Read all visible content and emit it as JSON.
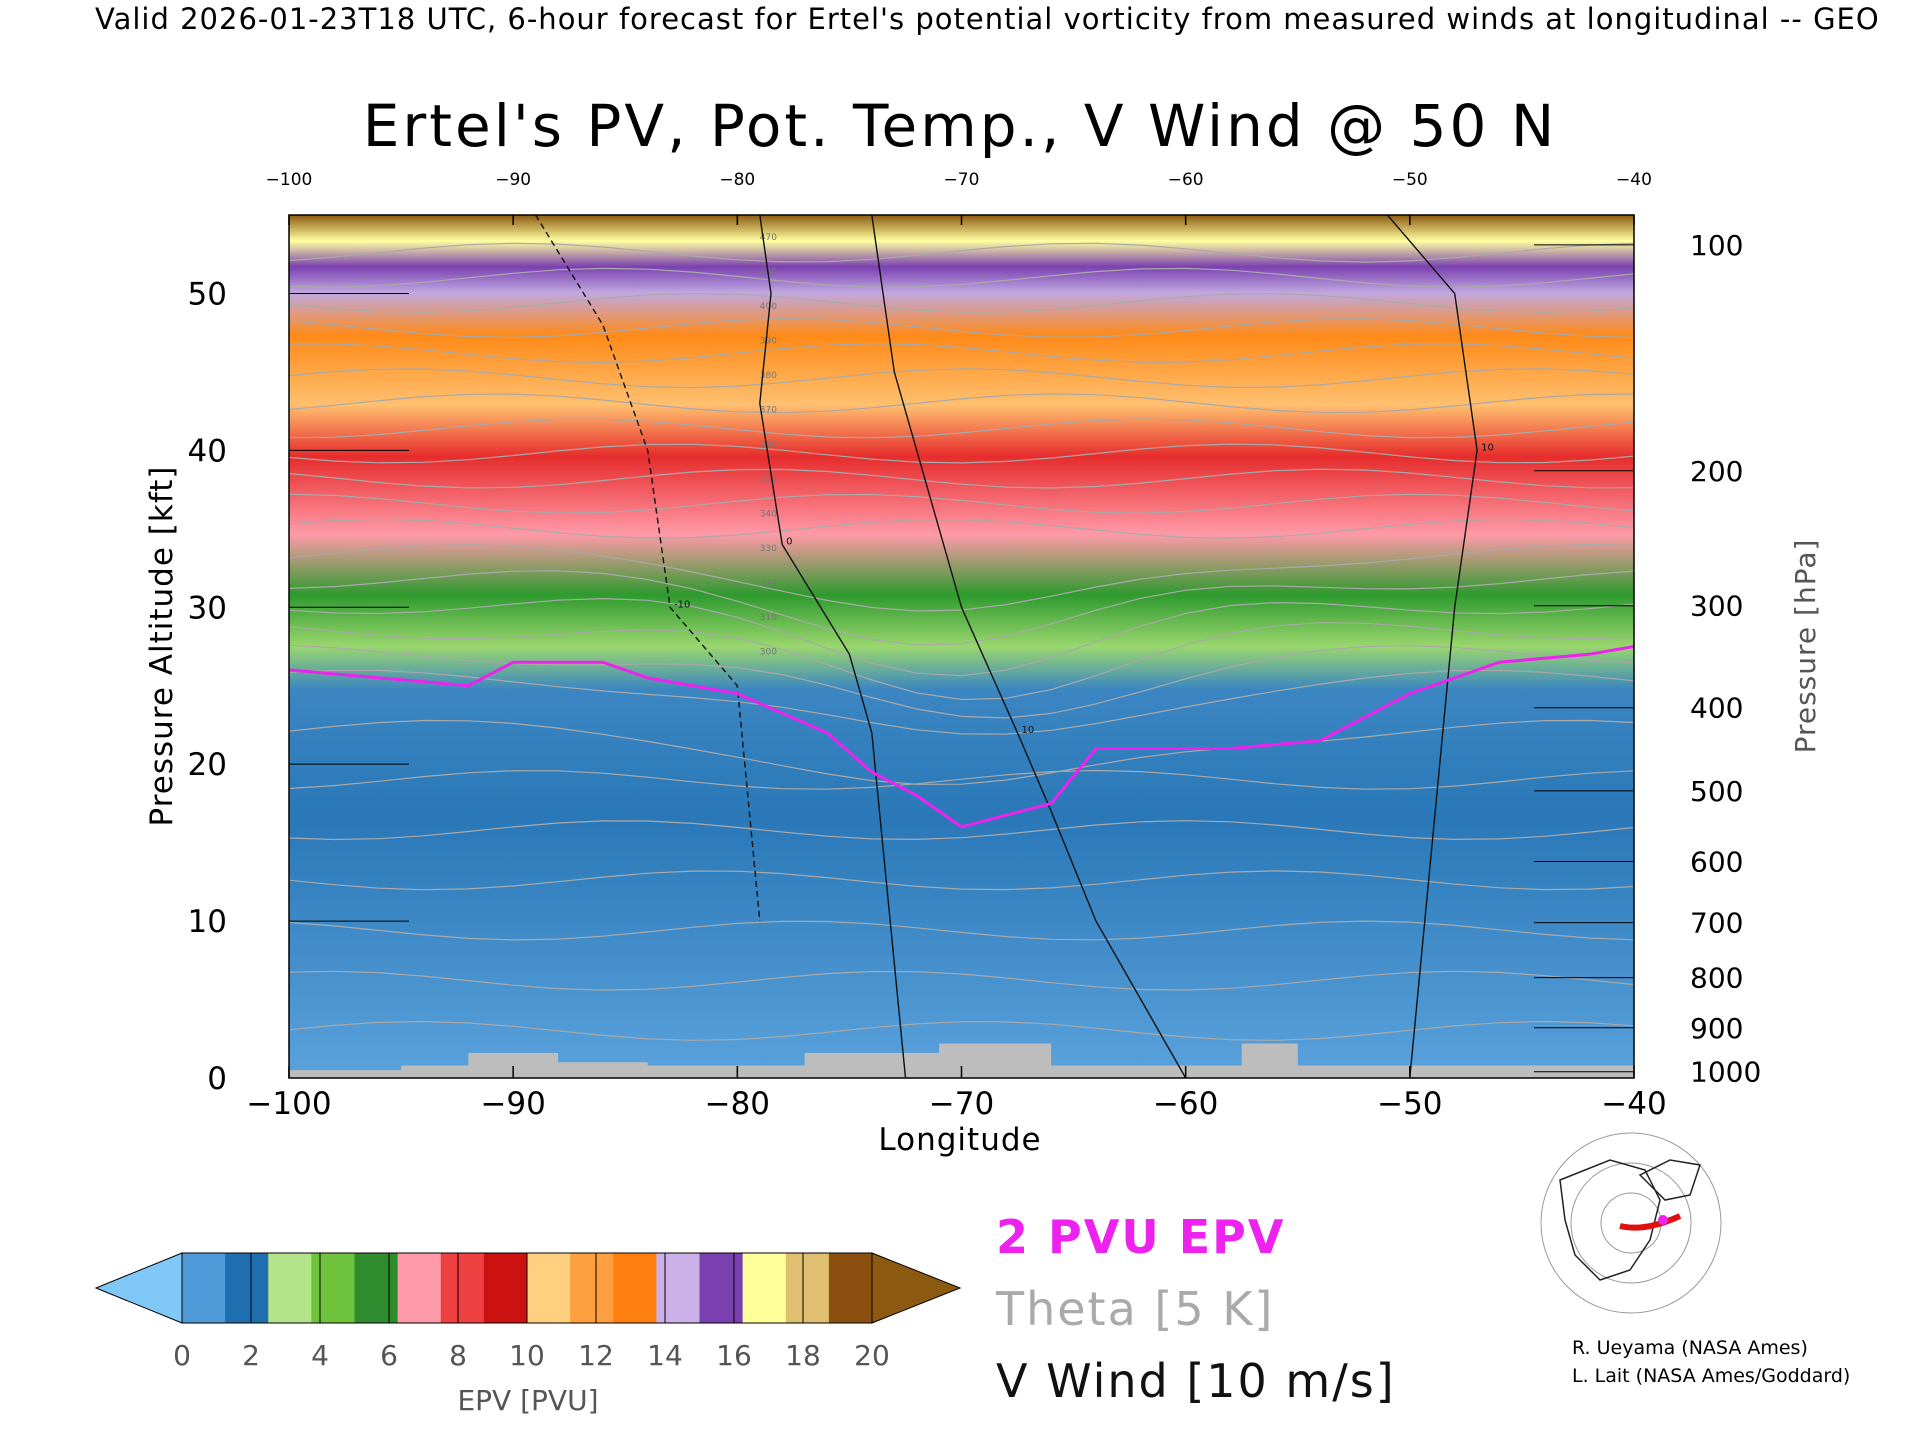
{
  "header": {
    "valid_line": "Valid 2026-01-23T18 UTC, 6-hour forecast for Ertel's potential vorticity from measured winds at longitudinal -- GEO",
    "title": "Ertel's PV, Pot. Temp., V Wind @ 50 N"
  },
  "chart_data": {
    "type": "heatmap",
    "title": "Ertel's PV, Pot. Temp., V Wind @ 50 N",
    "xlabel": "Longitude",
    "ylabel": "Pressure Altitude [kft]",
    "y2label": "Pressure [hPa]",
    "xlim": [
      -100,
      -40
    ],
    "ylim": [
      0,
      55
    ],
    "x_ticks": [
      -100,
      -90,
      -80,
      -70,
      -60,
      -50,
      -40
    ],
    "x_tick_labels": [
      "−100",
      "−90",
      "−80",
      "−70",
      "−60",
      "−50",
      "−40"
    ],
    "top_tick_labels": [
      "−100",
      "−90",
      "−80",
      "−70",
      "−60",
      "−50",
      "−40"
    ],
    "y_ticks": [
      0,
      10,
      20,
      30,
      40,
      50
    ],
    "y_tick_labels": [
      "0",
      "10",
      "20",
      "30",
      "40",
      "50"
    ],
    "pressure_ticks": [
      {
        "hpa": 100,
        "kft": 53.1,
        "label": "100"
      },
      {
        "hpa": 200,
        "kft": 38.7,
        "label": "200"
      },
      {
        "hpa": 300,
        "kft": 30.1,
        "label": "300"
      },
      {
        "hpa": 400,
        "kft": 23.6,
        "label": "400"
      },
      {
        "hpa": 500,
        "kft": 18.3,
        "label": "500"
      },
      {
        "hpa": 600,
        "kft": 13.8,
        "label": "600"
      },
      {
        "hpa": 700,
        "kft": 9.9,
        "label": "700"
      },
      {
        "hpa": 800,
        "kft": 6.4,
        "label": "800"
      },
      {
        "hpa": 900,
        "kft": 3.2,
        "label": "900"
      },
      {
        "hpa": 1000,
        "kft": 0.4,
        "label": "1000"
      }
    ],
    "epv_layers": [
      {
        "pvu_min": 0,
        "pvu_max": 2,
        "bottom_kft": 0,
        "top_kft": 25.5
      },
      {
        "pvu_min": 2,
        "pvu_max": 6,
        "bottom_kft": 25.5,
        "top_kft": 33
      },
      {
        "pvu_min": 6,
        "pvu_max": 10,
        "bottom_kft": 33,
        "top_kft": 41
      },
      {
        "pvu_min": 10,
        "pvu_max": 14,
        "bottom_kft": 41,
        "top_kft": 49
      },
      {
        "pvu_min": 14,
        "pvu_max": 20,
        "bottom_kft": 49,
        "top_kft": 55
      }
    ],
    "pv2_line": {
      "lon": [
        -100,
        -92,
        -90,
        -86,
        -84,
        -80,
        -76,
        -74,
        -72,
        -70,
        -66,
        -64,
        -58,
        -54,
        -50,
        -46,
        -42,
        -40
      ],
      "kft": [
        26,
        25,
        26.5,
        26.5,
        25.5,
        24.5,
        22,
        19.5,
        18,
        16,
        17.5,
        21,
        21,
        21.5,
        24.5,
        26.5,
        27,
        27.5
      ]
    },
    "theta_contours": {
      "interval_K": 5,
      "sample_labels": [
        "300",
        "310",
        "320",
        "330",
        "340",
        "350",
        "360",
        "370",
        "380",
        "390",
        "400",
        "420",
        "470"
      ]
    },
    "v_wind_contours": {
      "interval_ms": 10,
      "labels": [
        "10",
        "-10",
        "0"
      ],
      "lines": [
        {
          "level": 0,
          "lon": [
            -79,
            -78.5,
            -79,
            -78,
            -75,
            -74,
            -72.5
          ],
          "kft": [
            55,
            50,
            43,
            34,
            27,
            22,
            0
          ]
        },
        {
          "level": 10,
          "lon": [
            -74,
            -73,
            -71,
            -70,
            -67.5,
            -66,
            -64,
            -62,
            -60
          ],
          "kft": [
            55,
            45,
            35,
            30,
            22,
            17,
            10,
            5,
            0
          ]
        },
        {
          "level": -10,
          "lon": [
            -89,
            -86,
            -84,
            -83,
            -80,
            -79
          ],
          "kft": [
            55,
            48,
            40,
            30,
            25,
            10
          ]
        },
        {
          "level": 10,
          "lon": [
            -51,
            -48,
            -47,
            -48,
            -50
          ],
          "kft": [
            55,
            50,
            40,
            30,
            0
          ]
        }
      ]
    },
    "colorbar": {
      "label": "EPV [PVU]",
      "ticks": [
        "0",
        "2",
        "4",
        "6",
        "8",
        "10",
        "12",
        "14",
        "16",
        "18",
        "20"
      ],
      "colors": [
        "#4f9ad8",
        "#1f6eb0",
        "#b4e38a",
        "#6fc23c",
        "#2e8b2e",
        "#ff9aa8",
        "#ee4040",
        "#cc1111",
        "#ffd080",
        "#ffa040",
        "#ff8010",
        "#ccb0e8",
        "#7a40b0",
        "#ffff9a",
        "#e0c070",
        "#8b5010"
      ],
      "under_color": "#7fc8f8",
      "over_color": "#8b5a10"
    },
    "legend": [
      {
        "text": "2 PVU EPV",
        "color": "#ee22ee"
      },
      {
        "text": "Theta [5 K]",
        "color": "#aaaaaa"
      },
      {
        "text": "V Wind [10 m/s]",
        "color": "#111111"
      }
    ]
  },
  "credits": {
    "line1": "R. Ueyama (NASA Ames)",
    "line2": "L. Lait (NASA Ames/Goddard)"
  }
}
